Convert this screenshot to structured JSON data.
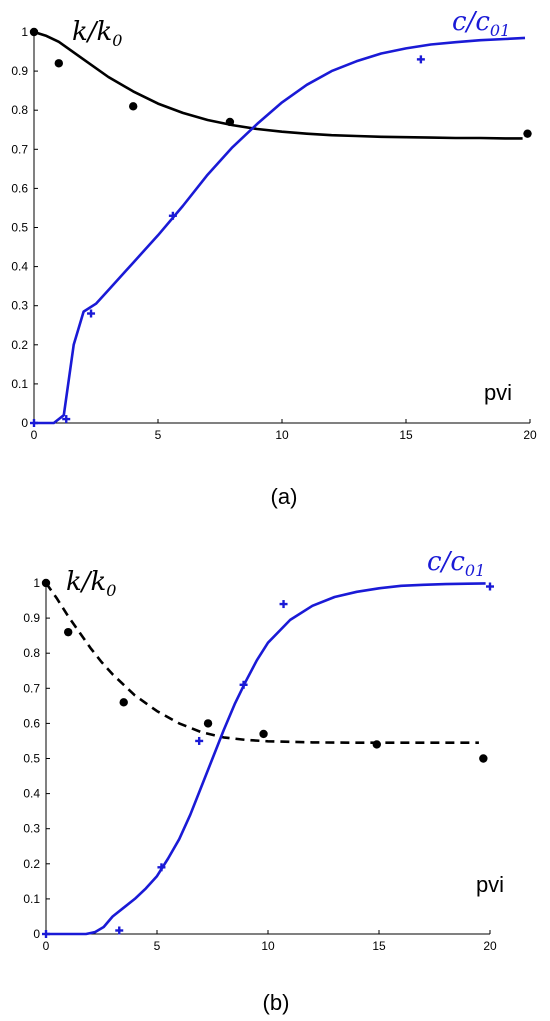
{
  "chart_data": [
    {
      "type": "line",
      "panel_label": "(a)",
      "xlabel": "pvi",
      "xlim": [
        0,
        20
      ],
      "ylim": [
        0,
        1
      ],
      "xticks": [
        "0",
        "5",
        "10",
        "15",
        "20"
      ],
      "yticks": [
        "0",
        "0.1",
        "0.2",
        "0.3",
        "0.4",
        "0.5",
        "0.6",
        "0.7",
        "0.8",
        "0.9",
        "1"
      ],
      "colors": {
        "k": "#000000",
        "c": "#1a1ad6"
      },
      "series": [
        {
          "name_main": "k/k",
          "name_sub": "0",
          "kind": "k",
          "line_style": "solid",
          "marker": "dot",
          "curve": {
            "x": [
              0,
              0.5,
              1,
              2,
              3,
              4,
              5,
              6,
              7,
              8,
              9,
              10,
              11,
              12,
              13,
              14,
              15,
              16,
              17,
              18,
              19,
              19.7
            ],
            "y": [
              1,
              0.99,
              0.975,
              0.93,
              0.885,
              0.848,
              0.817,
              0.793,
              0.775,
              0.762,
              0.752,
              0.745,
              0.74,
              0.736,
              0.734,
              0.732,
              0.731,
              0.73,
              0.729,
              0.729,
              0.728,
              0.728
            ]
          },
          "points": {
            "x": [
              0,
              1,
              4,
              7.9,
              19.9
            ],
            "y": [
              1,
              0.92,
              0.81,
              0.77,
              0.74
            ]
          }
        },
        {
          "name_main": "c/c",
          "name_sub": "01",
          "kind": "c",
          "line_style": "solid",
          "marker": "plus",
          "curve": {
            "x": [
              0,
              0.8,
              1.2,
              1.6,
              2,
              2.5,
              3,
              4,
              5,
              6,
              7,
              8,
              9,
              10,
              11,
              12,
              13,
              14,
              15,
              16,
              17,
              18,
              19,
              19.8
            ],
            "y": [
              0,
              0,
              0.02,
              0.2,
              0.285,
              0.305,
              0.34,
              0.41,
              0.48,
              0.555,
              0.635,
              0.705,
              0.765,
              0.82,
              0.865,
              0.9,
              0.925,
              0.945,
              0.958,
              0.968,
              0.974,
              0.979,
              0.982,
              0.985
            ]
          },
          "points": {
            "x": [
              0,
              1.3,
              2.3,
              5.6,
              15.6
            ],
            "y": [
              0,
              0.01,
              0.28,
              0.53,
              0.93
            ]
          }
        }
      ]
    },
    {
      "type": "line",
      "panel_label": "(b)",
      "xlabel": "pvi",
      "xlim": [
        0,
        20
      ],
      "ylim": [
        0,
        1
      ],
      "xticks": [
        "0",
        "5",
        "10",
        "15",
        "20"
      ],
      "yticks": [
        "0",
        "0.1",
        "0.2",
        "0.3",
        "0.4",
        "0.5",
        "0.6",
        "0.7",
        "0.8",
        "0.9",
        "1"
      ],
      "colors": {
        "k": "#000000",
        "c": "#1a1ad6"
      },
      "series": [
        {
          "name_main": "k/k",
          "name_sub": "0",
          "kind": "k",
          "line_style": "dashed",
          "marker": "dot",
          "curve": {
            "x": [
              0,
              0.5,
              1,
              1.5,
              2,
              2.5,
              3,
              3.5,
              4,
              5,
              6,
              7,
              8,
              9,
              10,
              12,
              14,
              16,
              18,
              19.5
            ],
            "y": [
              1,
              0.955,
              0.905,
              0.86,
              0.815,
              0.775,
              0.74,
              0.71,
              0.68,
              0.635,
              0.6,
              0.575,
              0.56,
              0.553,
              0.549,
              0.546,
              0.545,
              0.545,
              0.545,
              0.545
            ]
          },
          "points": {
            "x": [
              0,
              1,
              3.5,
              7.3,
              9.8,
              14.9,
              19.7
            ],
            "y": [
              1,
              0.86,
              0.66,
              0.6,
              0.57,
              0.54,
              0.5
            ]
          }
        },
        {
          "name_main": "c/c",
          "name_sub": "01",
          "kind": "c",
          "line_style": "solid",
          "marker": "plus",
          "curve": {
            "x": [
              0,
              1,
              1.8,
              2.2,
              2.6,
              3,
              3.5,
              4,
              4.5,
              5,
              5.5,
              6,
              6.5,
              7,
              7.5,
              8,
              8.5,
              9,
              9.5,
              10,
              11,
              12,
              13,
              14,
              15,
              16,
              17,
              18,
              19,
              19.8
            ],
            "y": [
              0,
              0,
              0,
              0.005,
              0.02,
              0.05,
              0.075,
              0.1,
              0.13,
              0.165,
              0.215,
              0.27,
              0.34,
              0.42,
              0.5,
              0.58,
              0.655,
              0.72,
              0.78,
              0.83,
              0.895,
              0.935,
              0.96,
              0.975,
              0.985,
              0.992,
              0.995,
              0.997,
              0.998,
              0.999
            ]
          },
          "points": {
            "x": [
              0,
              3.3,
              5.2,
              6.9,
              8.9,
              10.7,
              20
            ],
            "y": [
              0,
              0.01,
              0.19,
              0.55,
              0.71,
              0.94,
              0.99
            ]
          }
        }
      ]
    }
  ]
}
